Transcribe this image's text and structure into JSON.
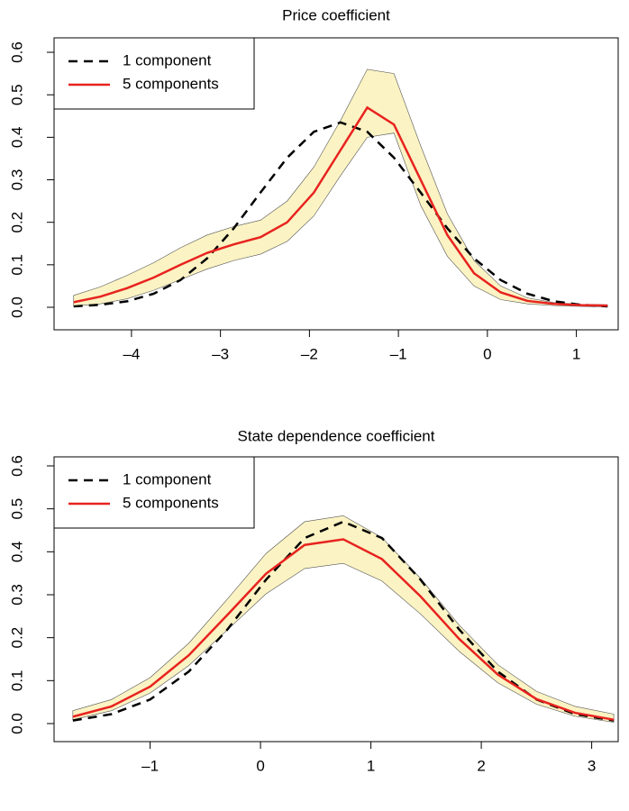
{
  "chart_data": [
    {
      "type": "line",
      "title": "Price coefficient",
      "x": [
        -4.65,
        -4.35,
        -4.05,
        -3.75,
        -3.45,
        -3.15,
        -2.85,
        -2.55,
        -2.25,
        -1.95,
        -1.65,
        -1.35,
        -1.05,
        -0.75,
        -0.45,
        -0.15,
        0.15,
        0.45,
        0.75,
        1.05,
        1.35
      ],
      "series": [
        {
          "name": "1 component",
          "color": "#000000",
          "dash": true,
          "values": [
            0.002,
            0.006,
            0.014,
            0.032,
            0.064,
            0.115,
            0.186,
            0.27,
            0.352,
            0.413,
            0.435,
            0.413,
            0.352,
            0.27,
            0.186,
            0.115,
            0.064,
            0.032,
            0.014,
            0.006,
            0.002
          ]
        },
        {
          "name": "5 components",
          "color": "#e8231f",
          "values": [
            0.012,
            0.025,
            0.045,
            0.07,
            0.1,
            0.128,
            0.148,
            0.165,
            0.2,
            0.27,
            0.37,
            0.47,
            0.43,
            0.3,
            0.17,
            0.08,
            0.035,
            0.015,
            0.008,
            0.005,
            0.004
          ]
        }
      ],
      "band": {
        "color": "#fbf3c3",
        "upper": [
          0.028,
          0.048,
          0.075,
          0.105,
          0.14,
          0.17,
          0.19,
          0.205,
          0.25,
          0.33,
          0.44,
          0.56,
          0.55,
          0.38,
          0.22,
          0.11,
          0.05,
          0.022,
          0.011,
          0.007,
          0.006
        ],
        "lower": [
          0.003,
          0.008,
          0.02,
          0.04,
          0.065,
          0.09,
          0.11,
          0.125,
          0.155,
          0.215,
          0.31,
          0.4,
          0.41,
          0.24,
          0.12,
          0.05,
          0.018,
          0.008,
          0.004,
          0.002,
          0.001
        ]
      },
      "xlim": [
        -4.87,
        1.47
      ],
      "ylim": [
        -0.053,
        0.634
      ],
      "xticks": [
        {
          "value": -4,
          "label": "–4"
        },
        {
          "value": -3,
          "label": "–3"
        },
        {
          "value": -2,
          "label": "–2"
        },
        {
          "value": -1,
          "label": "–1"
        },
        0,
        1
      ],
      "yticks": [
        {
          "value": 0,
          "label": "0.0"
        },
        0.1,
        0.2,
        0.3,
        0.4,
        0.5,
        0.6
      ],
      "legend": "top-left"
    },
    {
      "type": "line",
      "title": "State dependence coefficient",
      "x": [
        -1.7,
        -1.35,
        -1.0,
        -0.65,
        -0.3,
        0.05,
        0.4,
        0.75,
        1.1,
        1.45,
        1.8,
        2.15,
        2.5,
        2.85,
        3.2
      ],
      "series": [
        {
          "name": "1 component",
          "color": "#000000",
          "dash": true,
          "values": [
            0.007,
            0.022,
            0.056,
            0.121,
            0.219,
            0.335,
            0.432,
            0.47,
            0.432,
            0.335,
            0.219,
            0.121,
            0.056,
            0.022,
            0.007
          ]
        },
        {
          "name": "5 components",
          "color": "#e8231f",
          "values": [
            0.016,
            0.04,
            0.086,
            0.159,
            0.253,
            0.349,
            0.416,
            0.429,
            0.383,
            0.296,
            0.197,
            0.114,
            0.057,
            0.025,
            0.009
          ]
        }
      ],
      "band": {
        "color": "#fbf3c3",
        "upper": [
          0.03,
          0.056,
          0.107,
          0.187,
          0.29,
          0.396,
          0.47,
          0.484,
          0.433,
          0.338,
          0.229,
          0.137,
          0.075,
          0.04,
          0.022
        ],
        "lower": [
          0.009,
          0.03,
          0.071,
          0.135,
          0.218,
          0.302,
          0.361,
          0.373,
          0.332,
          0.255,
          0.168,
          0.095,
          0.045,
          0.017,
          0.003
        ]
      },
      "xlim": [
        -1.87,
        3.24
      ],
      "ylim": [
        -0.042,
        0.621
      ],
      "xticks": [
        {
          "value": -1,
          "label": "–1"
        },
        0,
        1,
        2,
        3
      ],
      "yticks": [
        {
          "value": 0,
          "label": "0.0"
        },
        0.1,
        0.2,
        0.3,
        0.4,
        0.5,
        0.6
      ],
      "legend": "top-left"
    }
  ]
}
